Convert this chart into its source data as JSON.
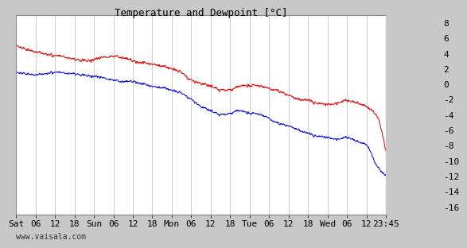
{
  "title": "Temperature and Dewpoint [°C]",
  "ylabel_right_ticks": [
    -16,
    -14,
    -12,
    -10,
    -8,
    -6,
    -4,
    -2,
    0,
    2,
    4,
    6,
    8
  ],
  "ylim": [
    -17,
    9
  ],
  "x_tick_labels": [
    "Sat",
    "06",
    "12",
    "18",
    "Sun",
    "06",
    "12",
    "18",
    "Mon",
    "06",
    "12",
    "18",
    "Tue",
    "06",
    "12",
    "18",
    "Wed",
    "06",
    "12",
    "23:45"
  ],
  "x_tick_positions": [
    0,
    6,
    12,
    18,
    24,
    30,
    36,
    42,
    48,
    54,
    60,
    66,
    72,
    78,
    84,
    90,
    96,
    102,
    108,
    114
  ],
  "x_total": 114,
  "watermark": "www.vaisala.com",
  "background_color": "#c8c8c8",
  "plot_bg_color": "#ffffff",
  "grid_color": "#bbbbbb",
  "temp_color": "#dd0000",
  "dewpoint_color": "#0000cc",
  "line_width": 0.7,
  "title_fontsize": 9,
  "tick_fontsize": 8
}
